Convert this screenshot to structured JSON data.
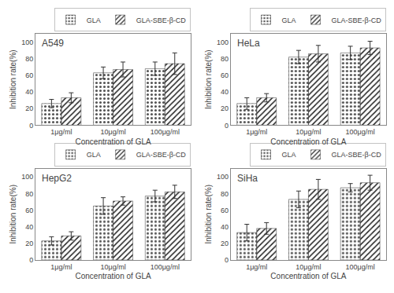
{
  "chart_data": [
    {
      "type": "bar",
      "title": "A549",
      "categories": [
        "1μg/ml",
        "10μg/ml",
        "100μg/ml"
      ],
      "xlabel": "Concentration of GLA",
      "ylabel": "Inhibition rate(%)",
      "series": [
        {
          "name": "GLA",
          "color": "#c0c0c0",
          "values": [
            26,
            63,
            68
          ],
          "errors": [
            5,
            7,
            8
          ]
        },
        {
          "name": "GLA-SBE-β-CD",
          "color": "#606060",
          "values": [
            33,
            67,
            74
          ],
          "errors": [
            6,
            9,
            13
          ]
        }
      ],
      "ylim": [
        0,
        110
      ],
      "yticks": [
        0,
        20,
        40,
        60,
        80,
        100
      ],
      "grid": false,
      "legend": "upper right"
    },
    {
      "type": "bar",
      "title": "HeLa",
      "categories": [
        "1μg/ml",
        "10μg/ml",
        "100μg/ml"
      ],
      "xlabel": "Concentration of GLA",
      "ylabel": "Inhibition rate(%)",
      "series": [
        {
          "name": "GLA",
          "color": "#c0c0c0",
          "values": [
            26,
            82,
            87
          ],
          "errors": [
            7,
            8,
            8
          ]
        },
        {
          "name": "GLA-SBE-β-CD",
          "color": "#606060",
          "values": [
            33,
            86,
            93
          ],
          "errors": [
            5,
            10,
            8
          ]
        }
      ],
      "ylim": [
        0,
        110
      ],
      "yticks": [
        0,
        20,
        40,
        60,
        80,
        100
      ],
      "grid": false,
      "legend": "upper right"
    },
    {
      "type": "bar",
      "title": "HepG2",
      "categories": [
        "1μg/ml",
        "10μg/ml",
        "100μg/ml"
      ],
      "xlabel": "Concentration of GLA",
      "ylabel": "Inhibition rate(%)",
      "series": [
        {
          "name": "GLA",
          "color": "#c0c0c0",
          "values": [
            23,
            65,
            77
          ],
          "errors": [
            5,
            10,
            7
          ]
        },
        {
          "name": "GLA-SBE-β-CD",
          "color": "#606060",
          "values": [
            29,
            71,
            82
          ],
          "errors": [
            5,
            5,
            8
          ]
        }
      ],
      "ylim": [
        0,
        110
      ],
      "yticks": [
        0,
        20,
        40,
        60,
        80,
        100
      ],
      "grid": false,
      "legend": "upper right"
    },
    {
      "type": "bar",
      "title": "SiHa",
      "categories": [
        "1μg/ml",
        "10μg/ml",
        "100μg/ml"
      ],
      "xlabel": "Concentration of GLA",
      "ylabel": "Inhibition rate(%)",
      "series": [
        {
          "name": "GLA",
          "color": "#c0c0c0",
          "values": [
            33,
            73,
            87
          ],
          "errors": [
            10,
            10,
            5
          ]
        },
        {
          "name": "GLA-SBE-β-CD",
          "color": "#606060",
          "values": [
            38,
            85,
            93
          ],
          "errors": [
            7,
            12,
            9
          ]
        }
      ],
      "ylim": [
        0,
        110
      ],
      "yticks": [
        0,
        20,
        40,
        60,
        80,
        100
      ],
      "grid": false,
      "legend": "upper right"
    }
  ]
}
